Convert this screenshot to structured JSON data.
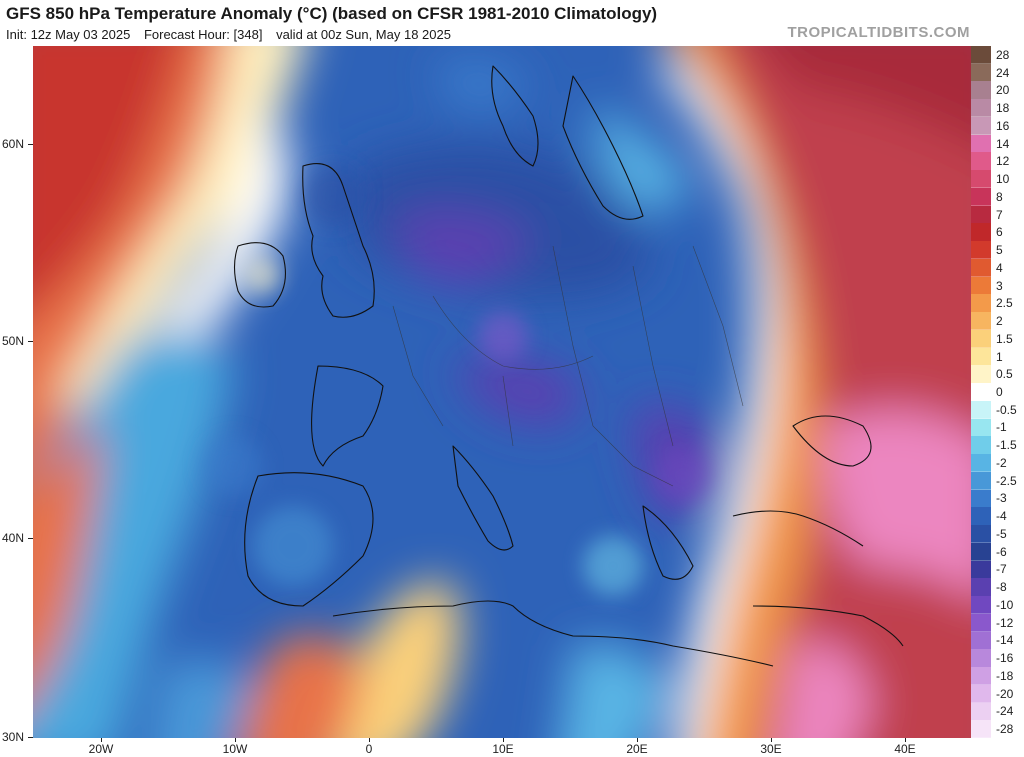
{
  "header": {
    "title": "GFS 850 hPa Temperature Anomaly (°C) (based on CFSR 1981-2010 Climatology)",
    "init": "Init: 12z May 03 2025",
    "forecast_hour": "Forecast Hour: [348]",
    "valid": "valid at 00z Sun, May 18 2025",
    "watermark": "TROPICALTIDBITS.COM"
  },
  "axes": {
    "lat_labels": [
      "60N",
      "50N",
      "40N",
      "30N"
    ],
    "lon_labels": [
      "20W",
      "10W",
      "0",
      "10E",
      "20E",
      "30E",
      "40E"
    ]
  },
  "colorbar": {
    "levels": [
      "28",
      "24",
      "20",
      "18",
      "16",
      "14",
      "12",
      "10",
      "8",
      "7",
      "6",
      "5",
      "4",
      "3",
      "2.5",
      "2",
      "1.5",
      "1",
      "0.5",
      "0",
      "-0.5",
      "-1",
      "-1.5",
      "-2",
      "-2.5",
      "-3",
      "-4",
      "-5",
      "-6",
      "-7",
      "-8",
      "-10",
      "-12",
      "-14",
      "-16",
      "-18",
      "-20",
      "-24",
      "-28"
    ],
    "colors": [
      "#6b4b3a",
      "#8a6a5a",
      "#a88090",
      "#b98aa5",
      "#c898b6",
      "#e070b0",
      "#e05a8a",
      "#d64a6e",
      "#c8345a",
      "#b82a40",
      "#c0282a",
      "#d23a2c",
      "#e05a30",
      "#ec7a38",
      "#f39a4a",
      "#f7b560",
      "#fbd07a",
      "#fde59a",
      "#fff4c8",
      "#ffffff",
      "#c8f4f8",
      "#98e6f0",
      "#70cdea",
      "#58b4e4",
      "#4898d8",
      "#3a7ccc",
      "#2e62b8",
      "#2a50a4",
      "#284292",
      "#3a3a9c",
      "#5a40b0",
      "#7048c0",
      "#8a58cc",
      "#a070d4",
      "#b888dc",
      "#cfa0e4",
      "#e0b8ec",
      "#ecd0f2",
      "#f6e4f8"
    ]
  }
}
